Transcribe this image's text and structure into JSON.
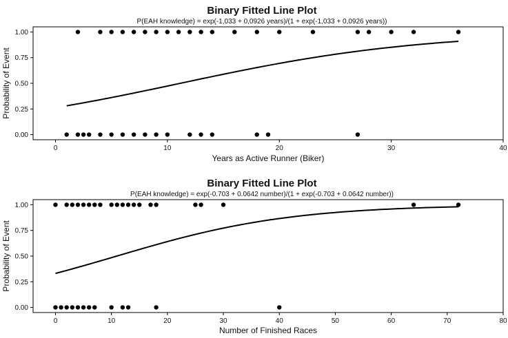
{
  "chart_data": [
    {
      "type": "scatter",
      "title": "Binary Fitted Line Plot",
      "subtitle": "P(EAH knowledge) = exp(-1,033 + 0,0926 years)/(1 + exp(-1,033 + 0,0926 years))",
      "xlabel": "Years as Active Runner (Biker)",
      "ylabel": "Probability of Event",
      "xlim": [
        -2,
        40
      ],
      "ylim": [
        -0.05,
        1.05
      ],
      "xticks": [
        0,
        10,
        20,
        30,
        40
      ],
      "yticks": [
        0.0,
        0.25,
        0.5,
        0.75,
        1.0
      ],
      "xtick_labels": [
        "0",
        "10",
        "20",
        "30",
        "40"
      ],
      "ytick_labels": [
        "0.00",
        "0.25",
        "0.50",
        "0.75",
        "1.00"
      ],
      "fit": {
        "intercept": -1.033,
        "slope": 0.0926,
        "x_range": [
          1,
          36
        ]
      },
      "points_y1": [
        2,
        4,
        5,
        6,
        7,
        8,
        9,
        10,
        11,
        12,
        13,
        14,
        16,
        18,
        20,
        23,
        27,
        28,
        30,
        32,
        36
      ],
      "points_y0": [
        1,
        2,
        2.5,
        3,
        4,
        5,
        6,
        7,
        8,
        9,
        10,
        12,
        13,
        14,
        18,
        19,
        27
      ]
    },
    {
      "type": "scatter",
      "title": "Binary Fitted Line Plot",
      "subtitle": "P(EAH knowledge) = exp(-0.703 + 0.0642 number)/(1 + exp(-0.703 + 0.0642 number))",
      "xlabel": "Number of Finished Races",
      "ylabel": "Probability of Event",
      "xlim": [
        -4,
        80
      ],
      "ylim": [
        -0.05,
        1.05
      ],
      "xticks": [
        0,
        10,
        20,
        30,
        40,
        50,
        60,
        70,
        80
      ],
      "yticks": [
        0.0,
        0.25,
        0.5,
        0.75,
        1.0
      ],
      "xtick_labels": [
        "0",
        "10",
        "20",
        "30",
        "40",
        "50",
        "60",
        "70",
        "80"
      ],
      "ytick_labels": [
        "0.00",
        "0.25",
        "0.50",
        "0.75",
        "1.00"
      ],
      "fit": {
        "intercept": -0.703,
        "slope": 0.0642,
        "x_range": [
          0,
          72
        ]
      },
      "points_y1": [
        0,
        2,
        3,
        4,
        5,
        6,
        7,
        8,
        10,
        11,
        12,
        13,
        14,
        15,
        17,
        18,
        25,
        26,
        30,
        64,
        72
      ],
      "points_y0": [
        0,
        1,
        2,
        3,
        4,
        5,
        6,
        7,
        10,
        12,
        13,
        18,
        40
      ]
    }
  ]
}
